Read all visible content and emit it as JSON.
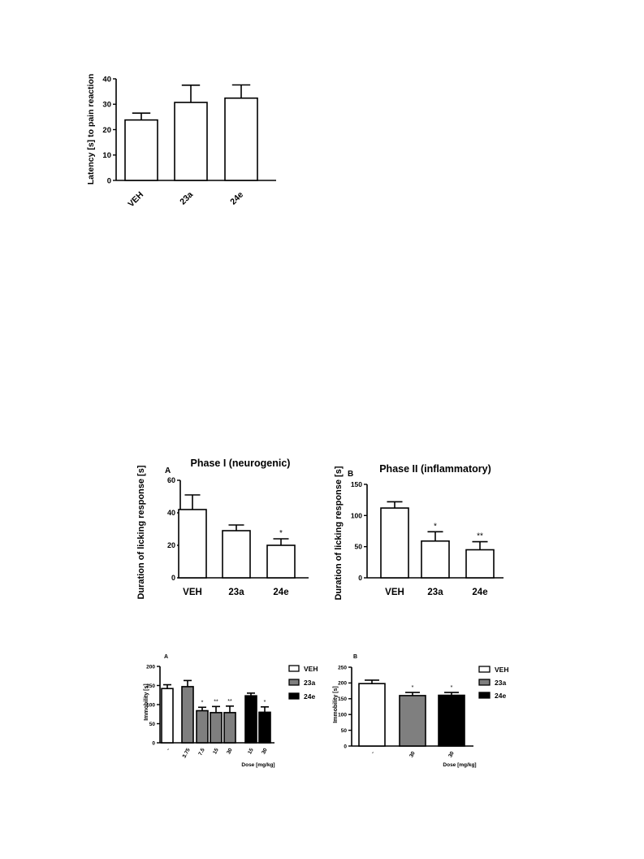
{
  "chart_data": [
    {
      "id": "latency",
      "type": "bar",
      "title": "",
      "panel_label": "",
      "ylabel": "Latency [s] to pain reaction",
      "xlabel": "",
      "ylim": [
        0,
        40
      ],
      "yticks": [
        "0",
        "10",
        "20",
        "30",
        "40"
      ],
      "categories": [
        "VEH",
        "23a",
        "24e"
      ],
      "values": [
        23.8,
        30.7,
        32.4
      ],
      "errors": [
        2.7,
        6.8,
        5.2
      ],
      "fills": [
        "#ffffff",
        "#ffffff",
        "#ffffff"
      ],
      "significance": [
        "",
        "",
        ""
      ],
      "grid": false
    },
    {
      "id": "phase1",
      "type": "bar",
      "title": "Phase I (neurogenic)",
      "panel_label": "A",
      "ylabel": "Duration of licking response [s]",
      "xlabel": "",
      "ylim": [
        0,
        60
      ],
      "yticks": [
        "0",
        "20",
        "40",
        "60"
      ],
      "categories": [
        "VEH",
        "23a",
        "24e"
      ],
      "values": [
        42,
        29,
        20
      ],
      "errors": [
        9,
        3.5,
        4
      ],
      "fills": [
        "#ffffff",
        "#ffffff",
        "#ffffff"
      ],
      "significance": [
        "",
        "",
        "*"
      ],
      "grid": false
    },
    {
      "id": "phase2",
      "type": "bar",
      "title": "Phase II (inflammatory)",
      "panel_label": "B",
      "ylabel": "Duration of licking response [s]",
      "xlabel": "",
      "ylim": [
        0,
        150
      ],
      "yticks": [
        "0",
        "50",
        "100",
        "150"
      ],
      "categories": [
        "VEH",
        "23a",
        "24e"
      ],
      "values": [
        112,
        59,
        45
      ],
      "errors": [
        10,
        15,
        13
      ],
      "fills": [
        "#ffffff",
        "#ffffff",
        "#ffffff"
      ],
      "significance": [
        "",
        "*",
        "**"
      ],
      "grid": false
    },
    {
      "id": "immob_a",
      "type": "bar",
      "title": "",
      "panel_label": "A",
      "ylabel": "Immobility [s]",
      "xlabel": "Dose [mg/kg]",
      "ylim": [
        0,
        200
      ],
      "yticks": [
        "0",
        "50",
        "100",
        "150",
        "200"
      ],
      "categories": [
        "-",
        "3.75",
        "7.5",
        "15",
        "30",
        "15",
        "30"
      ],
      "groups": [
        "VEH",
        "23a",
        "23a",
        "23a",
        "23a",
        "24e",
        "24e"
      ],
      "values": [
        142,
        147,
        84,
        79,
        79,
        123,
        80
      ],
      "errors": [
        10,
        16,
        9,
        16,
        17,
        7,
        14
      ],
      "fills": [
        "#ffffff",
        "#7f7f7f",
        "#7f7f7f",
        "#7f7f7f",
        "#7f7f7f",
        "#000000",
        "#000000"
      ],
      "significance": [
        "",
        "",
        "*",
        "**",
        "**",
        "",
        "*"
      ],
      "legend": [
        {
          "label": "VEH",
          "color": "#ffffff"
        },
        {
          "label": "23a",
          "color": "#7f7f7f"
        },
        {
          "label": "24e",
          "color": "#000000"
        }
      ],
      "legend_position": "right",
      "grid": false
    },
    {
      "id": "immob_b",
      "type": "bar",
      "title": "",
      "panel_label": "B",
      "ylabel": "Immobility [s]",
      "xlabel": "Dose [mg/kg]",
      "ylim": [
        0,
        250
      ],
      "yticks": [
        "0",
        "50",
        "100",
        "150",
        "200",
        "250"
      ],
      "categories": [
        "-",
        "30",
        "30"
      ],
      "groups": [
        "VEH",
        "23a",
        "24e"
      ],
      "values": [
        198,
        160,
        161
      ],
      "errors": [
        11,
        10,
        9
      ],
      "fills": [
        "#ffffff",
        "#7f7f7f",
        "#000000"
      ],
      "significance": [
        "",
        "*",
        "*"
      ],
      "legend": [
        {
          "label": "VEH",
          "color": "#ffffff"
        },
        {
          "label": "23a",
          "color": "#7f7f7f"
        },
        {
          "label": "24e",
          "color": "#000000"
        }
      ],
      "legend_position": "right",
      "grid": false
    }
  ]
}
